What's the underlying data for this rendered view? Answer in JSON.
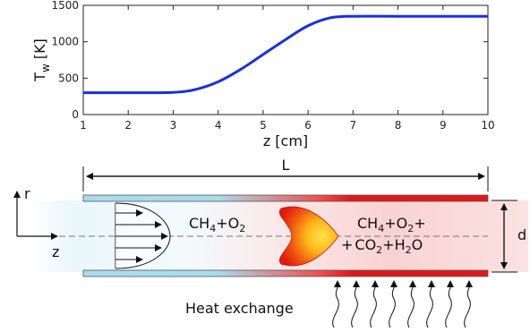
{
  "chart_data": {
    "type": "line",
    "xlabel": "z [cm]",
    "ylabel_main": "T",
    "ylabel_sub": "w",
    "ylabel_unit": " [K]",
    "xlim": [
      1,
      10
    ],
    "ylim": [
      0,
      1500
    ],
    "xticks": [
      "1",
      "2",
      "3",
      "4",
      "5",
      "6",
      "7",
      "8",
      "9",
      "10"
    ],
    "yticks": [
      "0",
      "500",
      "1000",
      "1500"
    ],
    "grid": false,
    "line_color": "#1a2fe0",
    "series": [
      {
        "x": [
          1,
          2,
          3,
          3.5,
          4,
          4.5,
          5,
          5.5,
          6,
          6.5,
          7,
          8,
          9,
          10
        ],
        "values": [
          300,
          300,
          305,
          345,
          450,
          620,
          825,
          1030,
          1220,
          1330,
          1350,
          1350,
          1350,
          1350
        ]
      }
    ]
  },
  "diagram": {
    "length_label": "L",
    "diameter_label": "d",
    "axis_r": "r",
    "axis_z": "z",
    "reactants": {
      "a": "CH",
      "a_sub": "4",
      "plus": "+",
      "b": "O",
      "b_sub": "2"
    },
    "products_line1": {
      "a": "CH",
      "a_sub": "4",
      "plus1": "+",
      "b": "O",
      "b_sub": "2",
      "plus2": "+"
    },
    "products_line2": {
      "plus0": "+",
      "c": "CO",
      "c_sub": "2",
      "plus1": "+",
      "d": "H",
      "d_sub": "2",
      "e": "O"
    },
    "heat_label": "Heat exchange",
    "colors": {
      "cold_wall": "#a8dcec",
      "hot_wall": "#e01818",
      "flame_outer": "#e81a10",
      "flame_inner": "#ffd21a"
    }
  }
}
